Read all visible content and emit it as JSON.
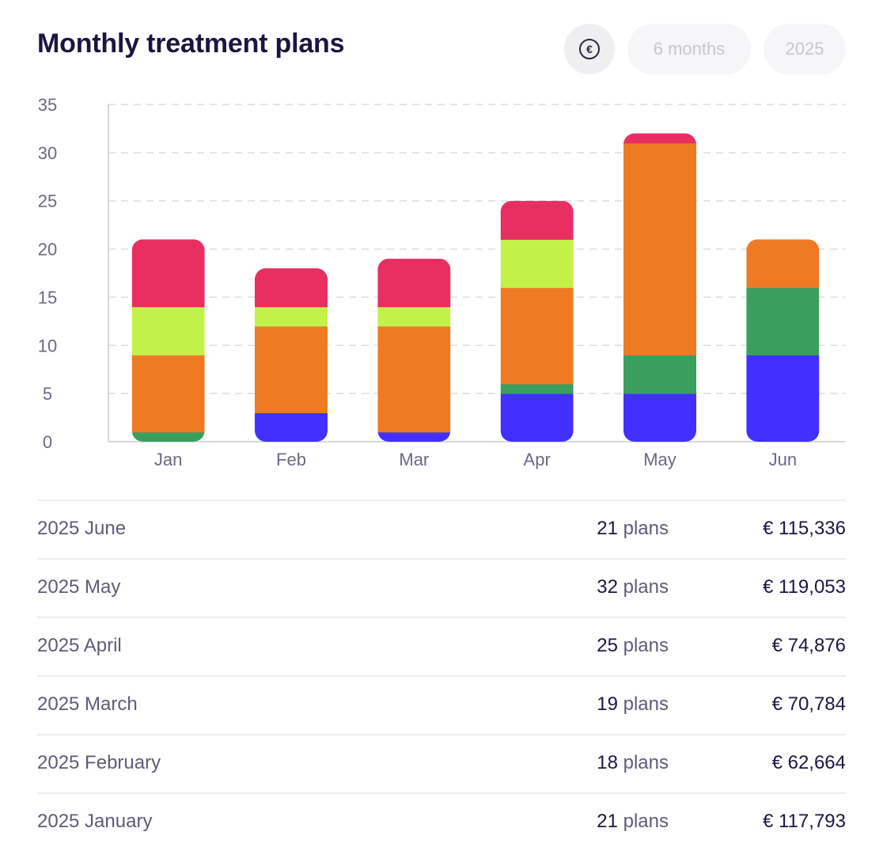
{
  "header": {
    "title": "Monthly treatment plans",
    "currency_symbol": "€",
    "period_label": "6 months",
    "year_label": "2025"
  },
  "chart_data": {
    "type": "bar",
    "stacked": true,
    "categories": [
      "Jan",
      "Feb",
      "Mar",
      "Apr",
      "May",
      "Jun"
    ],
    "ylim": [
      0,
      35
    ],
    "yticks": [
      0,
      5,
      10,
      15,
      20,
      25,
      30,
      35
    ],
    "grid": true,
    "series": [
      {
        "name": "blue",
        "color": "#4130ff",
        "values": [
          0,
          3,
          1,
          5,
          5,
          9
        ]
      },
      {
        "name": "green",
        "color": "#3a9e5f",
        "values": [
          1,
          0,
          0,
          1,
          4,
          7
        ]
      },
      {
        "name": "orange",
        "color": "#ee7b24",
        "values": [
          8,
          9,
          11,
          10,
          22,
          5
        ]
      },
      {
        "name": "lime",
        "color": "#c2f24a",
        "values": [
          5,
          2,
          2,
          5,
          0,
          0
        ]
      },
      {
        "name": "pink",
        "color": "#e92e62",
        "values": [
          7,
          4,
          5,
          4,
          1,
          0
        ]
      }
    ]
  },
  "summary": {
    "unit_label": "plans",
    "rows": [
      {
        "label": "2025 June",
        "count": "21",
        "amount": "€ 115,336"
      },
      {
        "label": "2025 May",
        "count": "32",
        "amount": "€ 119,053"
      },
      {
        "label": "2025 April",
        "count": "25",
        "amount": "€ 74,876"
      },
      {
        "label": "2025 March",
        "count": "19",
        "amount": "€ 70,784"
      },
      {
        "label": "2025 February",
        "count": "18",
        "amount": "€ 62,664"
      },
      {
        "label": "2025 January",
        "count": "21",
        "amount": "€ 117,793"
      }
    ]
  }
}
